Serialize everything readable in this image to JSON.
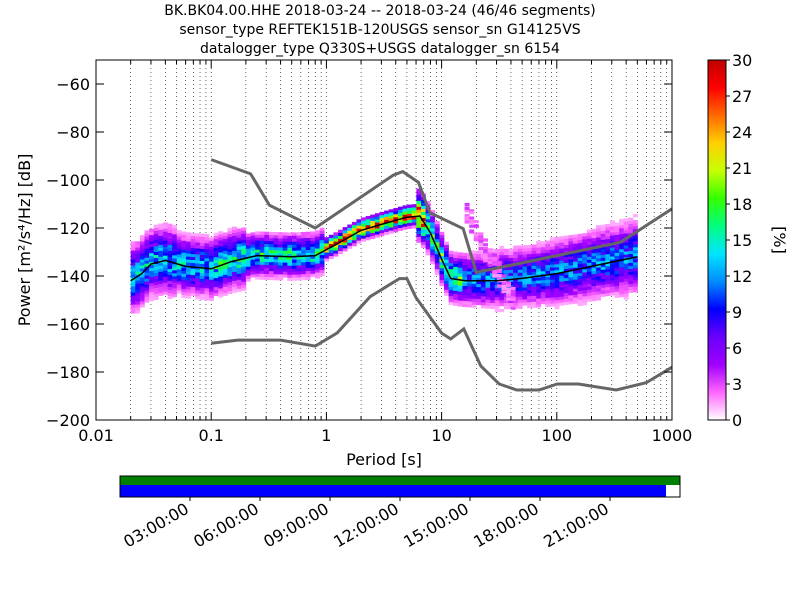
{
  "titles": {
    "line1": "BK.BK04.00.HHE   2018-03-24 -- 2018-03-24  (46/46 segments)",
    "line2": "sensor_type REFTEK151B-120USGS sensor_sn G14125VS",
    "line3": "datalogger_type Q330S+USGS datalogger_sn 6154"
  },
  "chart_data": {
    "type": "heatmap",
    "xlabel": "Period [s]",
    "ylabel": "Power [m²/s⁴/Hz] [dB]",
    "x_scale": "log",
    "xlim": [
      0.01,
      1000
    ],
    "ylim": [
      -200,
      -50
    ],
    "x_ticks": [
      {
        "value": 0.01,
        "label": "0.01"
      },
      {
        "value": 0.1,
        "label": "0.1"
      },
      {
        "value": 1,
        "label": "1"
      },
      {
        "value": 10,
        "label": "10"
      },
      {
        "value": 100,
        "label": "100"
      },
      {
        "value": 1000,
        "label": "1000"
      }
    ],
    "y_ticks": [
      {
        "value": -60,
        "label": "−60"
      },
      {
        "value": -80,
        "label": "−80"
      },
      {
        "value": -100,
        "label": "−100"
      },
      {
        "value": -120,
        "label": "−120"
      },
      {
        "value": -140,
        "label": "−140"
      },
      {
        "value": -160,
        "label": "−160"
      },
      {
        "value": -180,
        "label": "−180"
      },
      {
        "value": -200,
        "label": "−200"
      }
    ],
    "grid": "dotted vertical at each period decade subdivision",
    "colorbar": {
      "label": "[%]",
      "range": [
        0,
        30
      ],
      "ticks": [
        "0",
        "3",
        "6",
        "9",
        "12",
        "15",
        "18",
        "21",
        "24",
        "27",
        "30"
      ],
      "stops": [
        "#ffffff",
        "#ff66ff",
        "#a000ff",
        "#6a00ff",
        "#0000ff",
        "#008cff",
        "#00e5ff",
        "#00ff80",
        "#33ff00",
        "#c8ff00",
        "#ffd000",
        "#ff6a00",
        "#ff0000",
        "#c00000"
      ]
    },
    "noise_models": {
      "color": "#666666",
      "high": [
        [
          0.1,
          -91.5
        ],
        [
          0.22,
          -97.4
        ],
        [
          0.32,
          -110.5
        ],
        [
          0.8,
          -120
        ],
        [
          3.8,
          -98
        ],
        [
          4.6,
          -96.5
        ],
        [
          6.3,
          -101
        ],
        [
          7.9,
          -113.6
        ],
        [
          15.4,
          -120.3
        ],
        [
          20,
          -138.5
        ],
        [
          354.8,
          -126
        ],
        [
          1000,
          -112
        ]
      ],
      "low": [
        [
          0.1,
          -168
        ],
        [
          0.17,
          -166.7
        ],
        [
          0.4,
          -166.7
        ],
        [
          0.8,
          -169.2
        ],
        [
          1.24,
          -163.7
        ],
        [
          2.4,
          -148.6
        ],
        [
          4.3,
          -141.1
        ],
        [
          5,
          -141.1
        ],
        [
          6,
          -149
        ],
        [
          10,
          -163.8
        ],
        [
          12,
          -166.2
        ],
        [
          15.6,
          -162.1
        ],
        [
          21.9,
          -177.5
        ],
        [
          31.6,
          -185
        ],
        [
          45,
          -187.5
        ],
        [
          70,
          -187.5
        ],
        [
          101,
          -185
        ],
        [
          154,
          -185
        ],
        [
          328,
          -187.5
        ],
        [
          600,
          -184.4
        ],
        [
          1000,
          -178
        ]
      ]
    },
    "mean_curve": [
      [
        0.02,
        -142
      ],
      [
        0.025,
        -139
      ],
      [
        0.03,
        -135
      ],
      [
        0.04,
        -133.5
      ],
      [
        0.06,
        -136
      ],
      [
        0.1,
        -137
      ],
      [
        0.15,
        -134
      ],
      [
        0.25,
        -131.5
      ],
      [
        0.5,
        -132
      ],
      [
        0.8,
        -131.5
      ],
      [
        1.2,
        -127
      ],
      [
        2,
        -121
      ],
      [
        3,
        -118.5
      ],
      [
        5,
        -115.5
      ],
      [
        6.5,
        -115
      ],
      [
        8,
        -122
      ],
      [
        10,
        -133
      ],
      [
        12,
        -141
      ],
      [
        16,
        -142
      ],
      [
        20,
        -142
      ],
      [
        30,
        -142
      ],
      [
        50,
        -141
      ],
      [
        100,
        -139
      ],
      [
        200,
        -136
      ],
      [
        500,
        -132
      ]
    ],
    "timeline": {
      "labels": [
        "03:00:00",
        "06:00:00",
        "09:00:00",
        "12:00:00",
        "15:00:00",
        "18:00:00",
        "21:00:00"
      ],
      "hours": [
        3,
        6,
        9,
        12,
        15,
        18,
        21
      ],
      "range_hours": [
        0,
        24
      ],
      "data_coverage_end_hours": 24,
      "psd_coverage_end_hours": 23.4,
      "data_color": "#008000",
      "psd_color": "#0000ff"
    }
  }
}
